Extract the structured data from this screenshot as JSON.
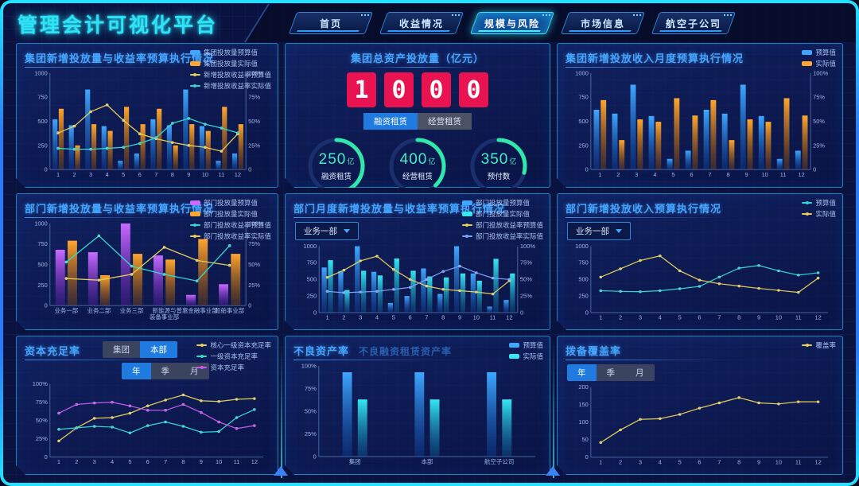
{
  "header": {
    "title": "管理会计可视化平台",
    "tabs": [
      {
        "label": "首页",
        "active": false
      },
      {
        "label": "收益情况",
        "active": false
      },
      {
        "label": "规模与风险",
        "active": true
      },
      {
        "label": "市场信息",
        "active": false
      },
      {
        "label": "航空子公司",
        "active": false
      }
    ]
  },
  "panels": {
    "p1": {
      "title": "集团新增投放量与收益率预算执行情况"
    },
    "p2": {
      "title": "集团总资产投放量（亿元）",
      "counter_digits": [
        "1",
        "0",
        "0",
        "0"
      ],
      "toggles": [
        {
          "label": "融资租赁",
          "active": true
        },
        {
          "label": "经营租赁",
          "active": false
        }
      ],
      "gauges": [
        {
          "value": "250",
          "unit": "亿",
          "label": "融资租赁",
          "percent": 42
        },
        {
          "value": "400",
          "unit": "亿",
          "label": "经营租赁",
          "percent": 38
        },
        {
          "value": "350",
          "unit": "亿",
          "label": "预付数",
          "percent": 29
        }
      ]
    },
    "p3": {
      "title": "集团新增投放收入月度预算执行情况"
    },
    "p4": {
      "title": "部门新增投放量与收益率预算执行情况"
    },
    "p5": {
      "title": "部门月度新增投放量与收益率预算执行情况",
      "dropdown": "业务一部"
    },
    "p6": {
      "title": "部门新增投放收入预算执行情况",
      "dropdown": "业务一部"
    },
    "p7": {
      "title": "资本充足率",
      "button_groups": [
        [
          {
            "label": "集团",
            "active": false
          },
          {
            "label": "本部",
            "active": true
          }
        ],
        [
          {
            "label": "年",
            "active": true
          },
          {
            "label": "季",
            "active": false
          },
          {
            "label": "月",
            "active": false
          }
        ]
      ]
    },
    "p8": {
      "title": "不良资产率",
      "subtitle": "不良融资租赁资产率"
    },
    "p9": {
      "title": "拨备覆盖率",
      "button_groups": [
        [
          {
            "label": "年",
            "active": true
          },
          {
            "label": "季",
            "active": false
          },
          {
            "label": "月",
            "active": false
          }
        ]
      ]
    }
  },
  "chart_data": {
    "c1": {
      "type": "bar",
      "title": "集团新增投放量与收益率预算执行情况",
      "categories": [
        "1",
        "2",
        "3",
        "4",
        "5",
        "6",
        "7",
        "8",
        "9",
        "10",
        "11",
        "12"
      ],
      "left_max": 1000,
      "right_max": 100,
      "left_ticks": [
        "0",
        "250",
        "500",
        "750",
        "1000"
      ],
      "right_ticks": [
        "0",
        "25%",
        "50%",
        "75%",
        "100%"
      ],
      "series": [
        {
          "name": "集团投放量预算值",
          "kind": "bar",
          "color": "#3FA7FF",
          "color2": "#0E4FB0",
          "values": [
            520,
            460,
            830,
            450,
            90,
            165,
            520,
            460,
            830,
            450,
            90,
            165
          ]
        },
        {
          "name": "集团投放量实际值",
          "kind": "bar",
          "color": "#FFA62E",
          "color2": "#9E5200",
          "values": [
            630,
            250,
            470,
            400,
            650,
            470,
            630,
            250,
            470,
            400,
            650,
            470
          ]
        },
        {
          "name": "新增投放收益率预算值",
          "kind": "line",
          "axis": "right",
          "color": "#E6CE5A",
          "values": [
            38,
            45,
            60,
            67,
            51,
            37,
            32,
            28,
            25,
            23,
            19,
            37
          ]
        },
        {
          "name": "新增投放收益率实际值",
          "kind": "line",
          "axis": "right",
          "color": "#32D8CF",
          "values": [
            22,
            21,
            21,
            22,
            23,
            27,
            33,
            48,
            53,
            47,
            43,
            38
          ]
        }
      ]
    },
    "c3": {
      "type": "bar",
      "title": "集团新增投放收入月度预算执行情况",
      "categories": [
        "1",
        "2",
        "3",
        "4",
        "5",
        "6",
        "7",
        "8",
        "9",
        "10",
        "11",
        "12"
      ],
      "left_max": 1000,
      "right_max": 100,
      "left_ticks": [
        "0",
        "250",
        "500",
        "750",
        "1000"
      ],
      "right_ticks": [
        "0",
        "25%",
        "50%",
        "75%",
        "100%"
      ],
      "series": [
        {
          "name": "预算值",
          "kind": "bar",
          "color": "#3FA7FF",
          "color2": "#0E4FB0",
          "values": [
            620,
            580,
            880,
            555,
            110,
            195,
            620,
            580,
            880,
            555,
            110,
            195
          ]
        },
        {
          "name": "实际值",
          "kind": "bar",
          "color": "#FFA62E",
          "color2": "#9E5200",
          "values": [
            720,
            305,
            520,
            495,
            740,
            560,
            720,
            305,
            520,
            495,
            740,
            560
          ]
        }
      ]
    },
    "c4": {
      "type": "bar",
      "title": "部门新增投放量与收益率预算执行情况",
      "categories": [
        "业务一部",
        "业务二部",
        "业务三部",
        "新能源与\n装备事业部",
        "普惠金融事业部",
        "船舶事业部"
      ],
      "left_max": 1000,
      "right_max": 100,
      "left_ticks": [
        "0",
        "250",
        "500",
        "750",
        "1000"
      ],
      "right_ticks": [
        "0",
        "25%",
        "50%",
        "75%",
        "100%"
      ],
      "series": [
        {
          "name": "部门投放量预算值",
          "kind": "bar",
          "color": "#C96BFF",
          "color2": "#6A1FB8",
          "values": [
            680,
            650,
            1020,
            610,
            130,
            260
          ]
        },
        {
          "name": "部门投放量实际值",
          "kind": "bar",
          "color": "#FFA62E",
          "color2": "#9E5200",
          "values": [
            790,
            370,
            630,
            560,
            810,
            630
          ]
        },
        {
          "name": "部门投放收益率预算值",
          "kind": "line",
          "axis": "right",
          "color": "#32D8CF",
          "values": [
            53,
            85,
            48,
            38,
            30,
            73
          ]
        },
        {
          "name": "部门投放收益率实际值",
          "kind": "line",
          "axis": "right",
          "color": "#E6CE5A",
          "values": [
            33,
            31,
            38,
            71,
            55,
            49
          ]
        }
      ]
    },
    "c5": {
      "type": "bar",
      "title": "部门月度新增投放量与收益率预算执行情况",
      "categories": [
        "1",
        "2",
        "3",
        "4",
        "5",
        "6",
        "7",
        "8",
        "9",
        "10",
        "11",
        "12"
      ],
      "left_max": 1000,
      "right_max": 100,
      "left_ticks": [
        "0",
        "250",
        "500",
        "750",
        "1000"
      ],
      "right_ticks": [
        "0",
        "25%",
        "50%",
        "75%",
        "100%"
      ],
      "series": [
        {
          "name": "部门投放量预算值",
          "kind": "bar",
          "color": "#3FA7FF",
          "color2": "#0E4FB0",
          "values": [
            680,
            625,
            1020,
            615,
            145,
            250,
            665,
            280,
            1020,
            590,
            90,
            190
          ]
        },
        {
          "name": "部门投放量实际值",
          "kind": "bar",
          "color": "#35E8F2",
          "color2": "#0C6FA8",
          "values": [
            790,
            340,
            630,
            560,
            815,
            630,
            545,
            530,
            590,
            480,
            810,
            590
          ]
        },
        {
          "name": "部门投放收益率预算值",
          "kind": "line",
          "axis": "right",
          "color": "#E6CE5A",
          "values": [
            53,
            64,
            78,
            85,
            65,
            50,
            40,
            35,
            33,
            31,
            28,
            48
          ]
        },
        {
          "name": "部门投放收益率实际值",
          "kind": "line",
          "axis": "right",
          "color": "#7AA3F7",
          "values": [
            32,
            30,
            31,
            32,
            35,
            38,
            50,
            62,
            70,
            60,
            52,
            50
          ]
        }
      ]
    },
    "c6": {
      "type": "line",
      "title": "部门新增投放收入预算执行情况",
      "categories": [
        "1",
        "2",
        "3",
        "4",
        "5",
        "6",
        "7",
        "8",
        "9",
        "10",
        "11",
        "12"
      ],
      "left_max": 1000,
      "left_ticks": [
        "0",
        "250",
        "500",
        "750",
        "1000"
      ],
      "series": [
        {
          "name": "预算值",
          "kind": "line",
          "color": "#32D8CF",
          "values": [
            330,
            320,
            315,
            330,
            360,
            395,
            535,
            670,
            710,
            630,
            565,
            600
          ]
        },
        {
          "name": "实际值",
          "kind": "line",
          "color": "#E6CE5A",
          "values": [
            535,
            660,
            785,
            855,
            630,
            490,
            435,
            400,
            365,
            335,
            305,
            520
          ]
        }
      ]
    },
    "c7": {
      "type": "line",
      "title": "资本充足率",
      "categories": [
        "1",
        "2",
        "3",
        "4",
        "5",
        "6",
        "7",
        "8",
        "9",
        "10",
        "11",
        "12"
      ],
      "left_max": 100,
      "left_ticks": [
        "0",
        "25%",
        "50%",
        "75%",
        "100%"
      ],
      "series": [
        {
          "name": "核心一级资本充足率",
          "kind": "line",
          "color": "#E6CE5A",
          "values": [
            22,
            40,
            53,
            54,
            60,
            70,
            78,
            85,
            77,
            76,
            79,
            80
          ]
        },
        {
          "name": "一级资本充足率",
          "kind": "line",
          "color": "#32D8CF",
          "values": [
            38,
            40,
            42,
            41,
            33,
            43,
            48,
            42,
            34,
            35,
            54,
            65
          ]
        },
        {
          "name": "资本充足率",
          "kind": "line",
          "color": "#C65AF0",
          "values": [
            60,
            72,
            74,
            75,
            70,
            64,
            64,
            72,
            61,
            48,
            39,
            43
          ]
        }
      ]
    },
    "c8": {
      "type": "bar",
      "title": "不良资产率 不良融资租赁资产率",
      "categories": [
        "集团",
        "本部",
        "航空子公司"
      ],
      "left_max": 100,
      "left_ticks": [
        "0",
        "25%",
        "50%",
        "75%",
        "100%"
      ],
      "series": [
        {
          "name": "预算值",
          "kind": "bar",
          "color": "#3FA7FF",
          "color2": "#0E4FB0",
          "values": [
            93,
            93,
            93
          ]
        },
        {
          "name": "实际值",
          "kind": "bar",
          "color": "#35E8F2",
          "color2": "#0C6FA8",
          "values": [
            63,
            63,
            63
          ]
        }
      ]
    },
    "c9": {
      "type": "line",
      "title": "拨备覆盖率",
      "categories": [
        "1",
        "2",
        "3",
        "4",
        "5",
        "6",
        "7",
        "8",
        "9",
        "10",
        "11",
        "12"
      ],
      "left_max": 200,
      "left_ticks": [
        "0",
        "50",
        "100",
        "150",
        "200"
      ],
      "series": [
        {
          "name": "覆盖率",
          "kind": "line",
          "color": "#E6CE5A",
          "values": [
            42,
            78,
            108,
            110,
            122,
            140,
            155,
            170,
            155,
            152,
            158,
            158
          ]
        }
      ]
    }
  }
}
